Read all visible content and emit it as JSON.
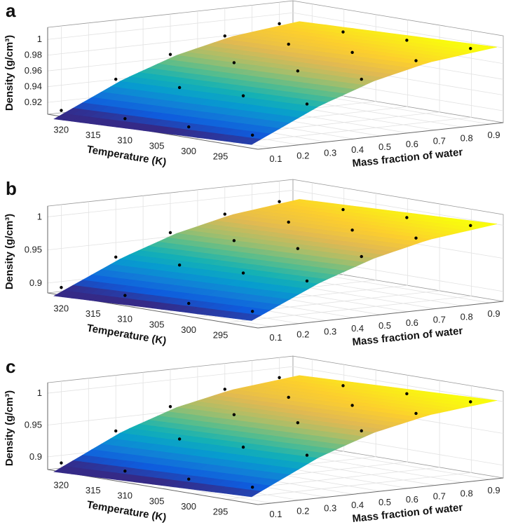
{
  "chart_data": [
    {
      "type": "surface",
      "panel_label": "a",
      "xlabel": "Temperature (K)",
      "ylabel": "Mass fraction of water",
      "zlabel": "Density (g/cm³)",
      "x_ticks": [
        "320",
        "315",
        "310",
        "305",
        "300",
        "295"
      ],
      "x_tick_values": [
        320,
        315,
        310,
        305,
        300,
        295
      ],
      "y_ticks": [
        "0.1",
        "0.2",
        "0.3",
        "0.4",
        "0.5",
        "0.6",
        "0.7",
        "0.8",
        "0.9"
      ],
      "y_tick_values": [
        0.1,
        0.2,
        0.3,
        0.4,
        0.5,
        0.6,
        0.7,
        0.8,
        0.9
      ],
      "z_ticks": [
        "0.92",
        "0.94",
        "0.96",
        "0.98",
        "1"
      ],
      "z_tick_values": [
        0.92,
        0.94,
        0.96,
        0.98,
        1.0
      ],
      "xlim": [
        290,
        323
      ],
      "ylim": [
        0.05,
        0.95
      ],
      "zlim": [
        0.905,
        1.01
      ],
      "grid": true,
      "surface": {
        "temperature": [
          293,
          303,
          313,
          323
        ],
        "mass_fraction": [
          0.1,
          0.3,
          0.5,
          0.7,
          0.9
        ],
        "density": [
          [
            0.917,
            0.949,
            0.973,
            0.989,
            0.997
          ],
          [
            0.914,
            0.946,
            0.97,
            0.986,
            0.994
          ],
          [
            0.911,
            0.943,
            0.967,
            0.983,
            0.991
          ],
          [
            0.908,
            0.94,
            0.964,
            0.98,
            0.988
          ]
        ]
      },
      "points_color": "#000000"
    },
    {
      "type": "surface",
      "panel_label": "b",
      "xlabel": "Temperature (K)",
      "ylabel": "Mass fraction of water",
      "zlabel": "Density (g/cm³)",
      "x_ticks": [
        "320",
        "315",
        "310",
        "305",
        "300",
        "295"
      ],
      "x_tick_values": [
        320,
        315,
        310,
        305,
        300,
        295
      ],
      "y_ticks": [
        "0.1",
        "0.2",
        "0.3",
        "0.4",
        "0.5",
        "0.6",
        "0.7",
        "0.8",
        "0.9"
      ],
      "y_tick_values": [
        0.1,
        0.2,
        0.3,
        0.4,
        0.5,
        0.6,
        0.7,
        0.8,
        0.9
      ],
      "z_ticks": [
        "0.9",
        "0.95",
        "1"
      ],
      "z_tick_values": [
        0.9,
        0.95,
        1.0
      ],
      "xlim": [
        290,
        323
      ],
      "ylim": [
        0.05,
        0.95
      ],
      "zlim": [
        0.885,
        1.01
      ],
      "grid": true,
      "surface": {
        "temperature": [
          293,
          303,
          313,
          323
        ],
        "mass_fraction": [
          0.1,
          0.3,
          0.5,
          0.7,
          0.9
        ],
        "density": [
          [
            0.903,
            0.94,
            0.968,
            0.987,
            0.997
          ],
          [
            0.899,
            0.936,
            0.964,
            0.983,
            0.993
          ],
          [
            0.895,
            0.932,
            0.96,
            0.979,
            0.989
          ],
          [
            0.891,
            0.928,
            0.956,
            0.975,
            0.985
          ]
        ]
      },
      "points_color": "#000000"
    },
    {
      "type": "surface",
      "panel_label": "c",
      "xlabel": "Temperature (K)",
      "ylabel": "Mass fraction of water",
      "zlabel": "Density (g/cm³)",
      "x_ticks": [
        "320",
        "315",
        "310",
        "305",
        "300",
        "295"
      ],
      "x_tick_values": [
        320,
        315,
        310,
        305,
        300,
        295
      ],
      "y_ticks": [
        "0.1",
        "0.2",
        "0.3",
        "0.4",
        "0.5",
        "0.6",
        "0.7",
        "0.8",
        "0.9"
      ],
      "y_tick_values": [
        0.1,
        0.2,
        0.3,
        0.4,
        0.5,
        0.6,
        0.7,
        0.8,
        0.9
      ],
      "z_ticks": [
        "0.9",
        "0.95",
        "1"
      ],
      "z_tick_values": [
        0.9,
        0.95,
        1.0
      ],
      "xlim": [
        290,
        323
      ],
      "ylim": [
        0.05,
        0.95
      ],
      "zlim": [
        0.88,
        1.01
      ],
      "grid": true,
      "surface": {
        "temperature": [
          293,
          303,
          313,
          323
        ],
        "mass_fraction": [
          0.1,
          0.3,
          0.5,
          0.7,
          0.9
        ],
        "density": [
          [
            0.9,
            0.941,
            0.97,
            0.988,
            0.997
          ],
          [
            0.896,
            0.937,
            0.966,
            0.984,
            0.993
          ],
          [
            0.892,
            0.933,
            0.962,
            0.98,
            0.989
          ],
          [
            0.888,
            0.929,
            0.958,
            0.976,
            0.985
          ]
        ]
      },
      "points_color": "#000000"
    }
  ]
}
